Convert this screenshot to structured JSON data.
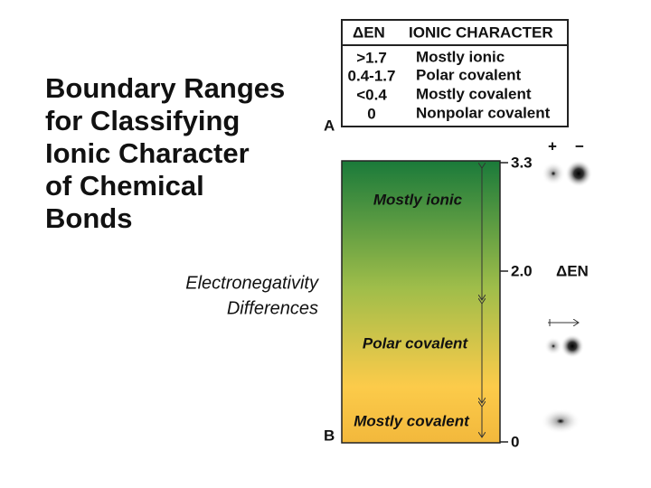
{
  "title": {
    "lines": [
      "Boundary Ranges",
      "for Classifying",
      "Ionic Character",
      "of Chemical",
      "Bonds"
    ]
  },
  "table": {
    "header": [
      "ΔEN",
      "IONIC CHARACTER"
    ],
    "rows": [
      [
        ">1.7",
        "Mostly ionic"
      ],
      [
        "0.4-1.7",
        "Polar covalent"
      ],
      [
        "<0.4",
        "Mostly covalent"
      ],
      [
        "0",
        "Nonpolar covalent"
      ]
    ]
  },
  "panel_labels": [
    "A",
    "B"
  ],
  "bar": {
    "regions": [
      "Mostly ionic",
      "Polar covalent",
      "Mostly covalent"
    ],
    "scale": [
      "3.3",
      "2.0",
      "0"
    ],
    "axis_label": [
      "Electronegativity",
      "Differences"
    ],
    "delta_label": "ΔEN",
    "charges": [
      "+",
      "−"
    ]
  }
}
